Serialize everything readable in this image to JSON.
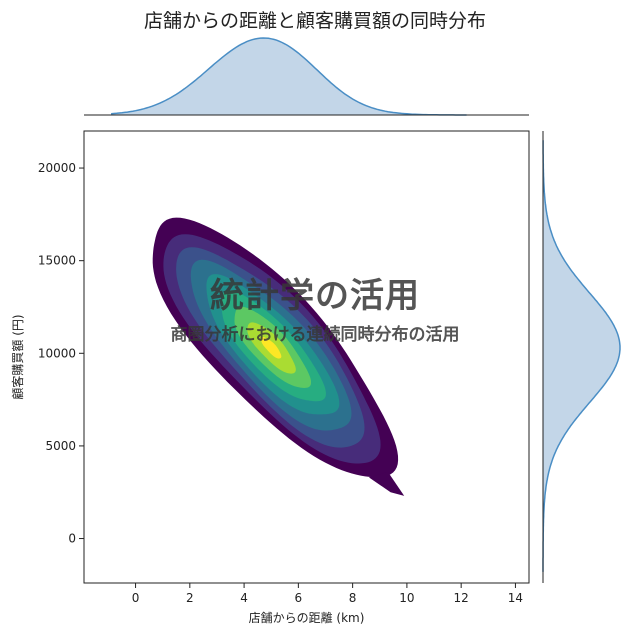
{
  "chart_data": {
    "type": "heatmap",
    "kind": "jointplot-kde",
    "title": "店舗からの距離と顧客購買額の同時分布",
    "xlabel": "店舗からの距離 (km)",
    "ylabel": "顧客購買額 (円)",
    "xlim": [
      -1.9,
      14.5
    ],
    "ylim": [
      -2400,
      22000
    ],
    "xticks": [
      0,
      2,
      4,
      6,
      8,
      10,
      12,
      14
    ],
    "yticks": [
      0,
      5000,
      10000,
      15000,
      20000
    ],
    "joint_density": {
      "mean": [
        5.0,
        10300
      ],
      "std": [
        1.9,
        2950
      ],
      "correlation": -0.8,
      "x_range": [
        0.0,
        9.8
      ],
      "y_range": [
        2300,
        17900
      ],
      "levels": 9,
      "colormap": "viridis"
    },
    "marginal_x": {
      "peak_x": 4.5,
      "range": [
        -0.9,
        12.2
      ]
    },
    "marginal_y": {
      "peak_y": 10300,
      "range": [
        -1800,
        21500
      ]
    },
    "colors": {
      "marginal_fill": "#c3d6e8",
      "marginal_line": "#4a8ec5",
      "viridis": [
        "#440154",
        "#472c7a",
        "#3b518b",
        "#2c718e",
        "#21908d",
        "#27ad81",
        "#5cc863",
        "#aadc32",
        "#fde725"
      ]
    },
    "grid": false
  },
  "overlay": {
    "title": "統計学の活用",
    "subtitle": "商圏分析における連続同時分布の活用"
  }
}
